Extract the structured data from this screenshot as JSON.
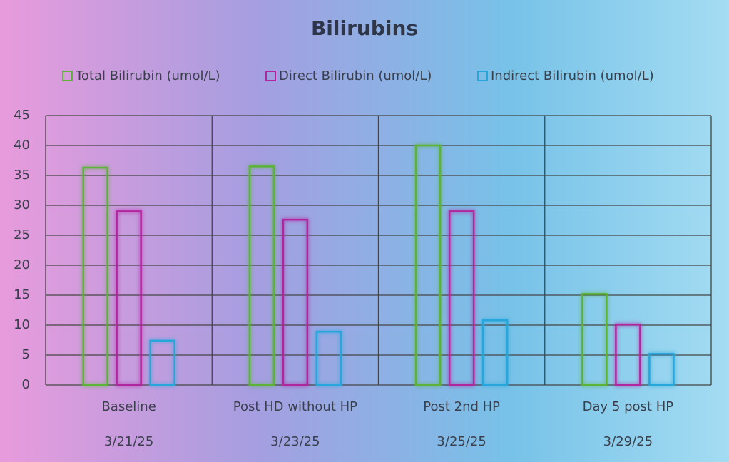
{
  "chart_data": {
    "type": "bar",
    "title": "Bilirubins",
    "categories": [
      "Baseline",
      "Post HD without HP",
      "Post 2nd HP",
      "Day 5 post HP"
    ],
    "dates": [
      "3/21/25",
      "3/23/25",
      "3/25/25",
      "3/29/25"
    ],
    "series": [
      {
        "name": "Total Bilirubin (umol/L)",
        "color": "#5cb338",
        "values": [
          36.3,
          36.5,
          40,
          15.2
        ]
      },
      {
        "name": "Direct Bilirubin (umol/L)",
        "color": "#b0269f",
        "values": [
          29,
          27.6,
          29,
          10.1
        ]
      },
      {
        "name": "Indirect Bilirubin (umol/L)",
        "color": "#27a6dc",
        "values": [
          7.4,
          8.9,
          10.8,
          5.2
        ]
      }
    ],
    "ylim": [
      0,
      45
    ],
    "yticks": [
      0,
      5,
      10,
      15,
      20,
      25,
      30,
      35,
      40,
      45
    ],
    "grid": true,
    "legend": "top"
  }
}
